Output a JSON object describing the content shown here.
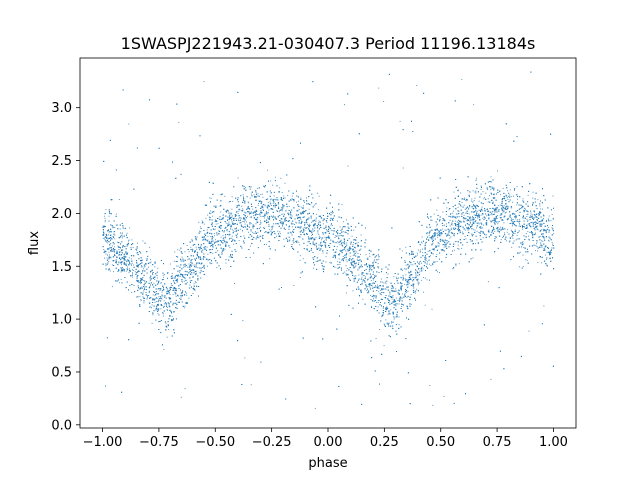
{
  "chart_data": {
    "type": "scatter",
    "title": "1SWASPJ221943.21-030407.3 Period 11196.13184s",
    "xlabel": "phase",
    "ylabel": "flux",
    "xlim": [
      -1.1,
      1.1
    ],
    "ylim": [
      -0.03,
      3.47
    ],
    "xticks": [
      -1.0,
      -0.75,
      -0.5,
      -0.25,
      0.0,
      0.25,
      0.5,
      0.75,
      1.0
    ],
    "xtick_labels": [
      "−1.00",
      "−0.75",
      "−0.50",
      "−0.25",
      "0.00",
      "0.25",
      "0.50",
      "0.75",
      "1.00"
    ],
    "yticks": [
      0.0,
      0.5,
      1.0,
      1.5,
      2.0,
      2.5,
      3.0
    ],
    "ytick_labels": [
      "0.0",
      "0.5",
      "1.0",
      "1.5",
      "2.0",
      "2.5",
      "3.0"
    ],
    "grid": false,
    "series": [
      {
        "color": "#1f77b4",
        "marker": "point",
        "phase_range": [
          -1.0,
          1.0
        ],
        "trend": {
          "x": [
            -1.0,
            -0.9,
            -0.8,
            -0.72,
            -0.65,
            -0.5,
            -0.35,
            -0.25,
            -0.1,
            0.0,
            0.1,
            0.2,
            0.28,
            0.35,
            0.5,
            0.65,
            0.75,
            0.9,
            1.0
          ],
          "y": [
            1.75,
            1.6,
            1.35,
            1.15,
            1.4,
            1.8,
            1.98,
            2.0,
            1.9,
            1.75,
            1.6,
            1.35,
            1.15,
            1.4,
            1.8,
            1.98,
            2.0,
            1.9,
            1.75
          ]
        },
        "spread": 0.15,
        "outlier_range": [
          0.15,
          3.35
        ]
      }
    ]
  }
}
